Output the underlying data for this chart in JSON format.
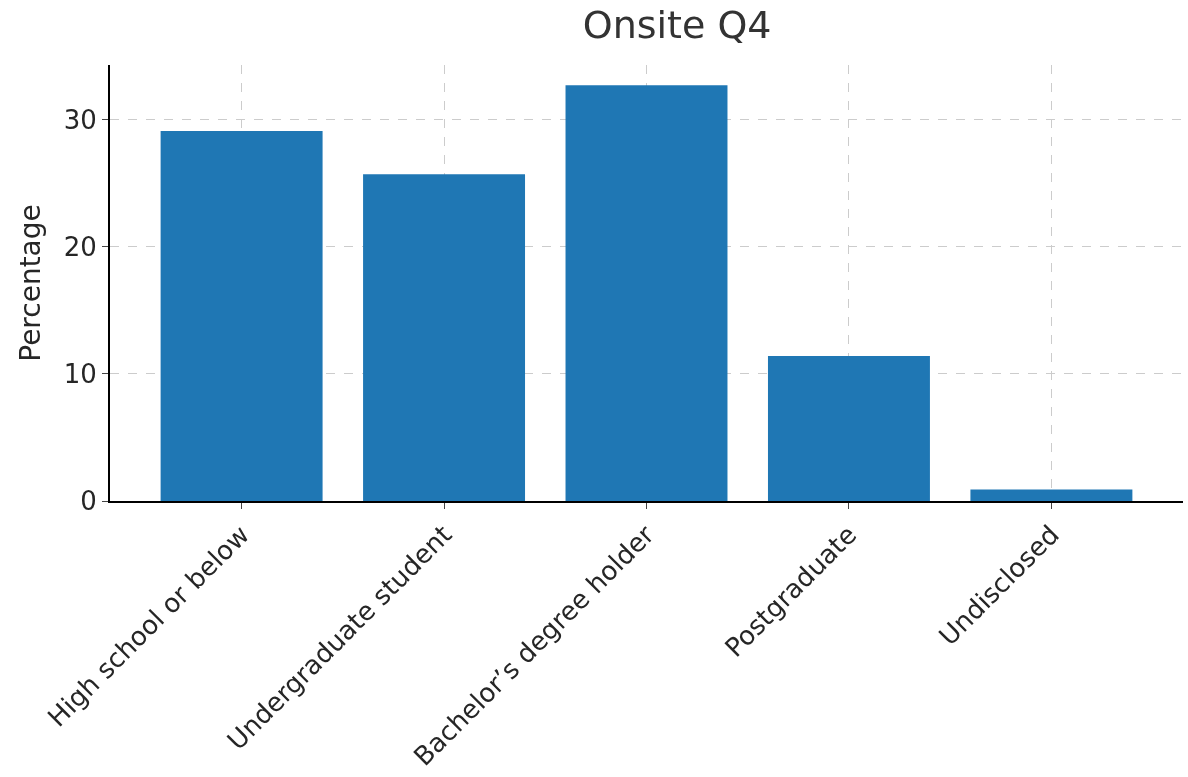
{
  "chart_data": {
    "type": "bar",
    "title": "Onsite Q4",
    "ylabel": "Percentage",
    "categories": [
      "High school or below",
      "Undergraduate student",
      "Bachelor’s degree holder",
      "Postgraduate",
      "Undisclosed"
    ],
    "values": [
      29.1,
      25.7,
      32.7,
      11.4,
      0.9
    ],
    "color": "#1f77b4",
    "ylim": [
      0,
      34.3
    ],
    "yticks": [
      0,
      10,
      20,
      30
    ],
    "grid": true,
    "legend": false
  }
}
